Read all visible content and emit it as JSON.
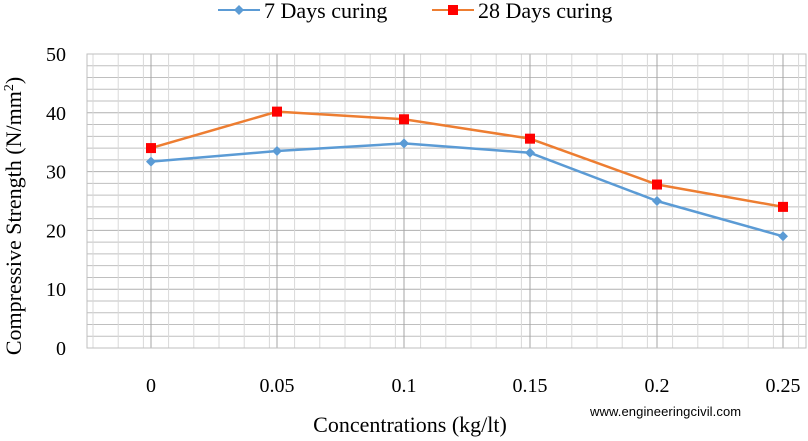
{
  "chart_data": {
    "type": "line",
    "categories": [
      "0",
      "0.05",
      "0.1",
      "0.15",
      "0.2",
      "0.25"
    ],
    "series": [
      {
        "name": "7 Days curing",
        "values": [
          31.7,
          33.5,
          34.8,
          33.2,
          25.0,
          19.0
        ],
        "color": "#5b9bd5",
        "marker": "diamond"
      },
      {
        "name": "28 Days curing",
        "values": [
          34.0,
          40.2,
          38.9,
          35.6,
          27.8,
          24.0
        ],
        "color": "#ed7d31",
        "marker_color": "#ff0000",
        "marker": "square"
      }
    ],
    "xlabel": "Concentrations (kg/lt)",
    "ylabel": "Compressive Strength (N/mm",
    "ylabel_sup": "2",
    "ylabel_close": ")",
    "ylim": [
      0,
      50
    ],
    "yticks": [
      "0",
      "10",
      "20",
      "30",
      "40",
      "50"
    ],
    "grid": true,
    "legend_position": "top"
  },
  "watermark": "www.engineeringcivil.com"
}
